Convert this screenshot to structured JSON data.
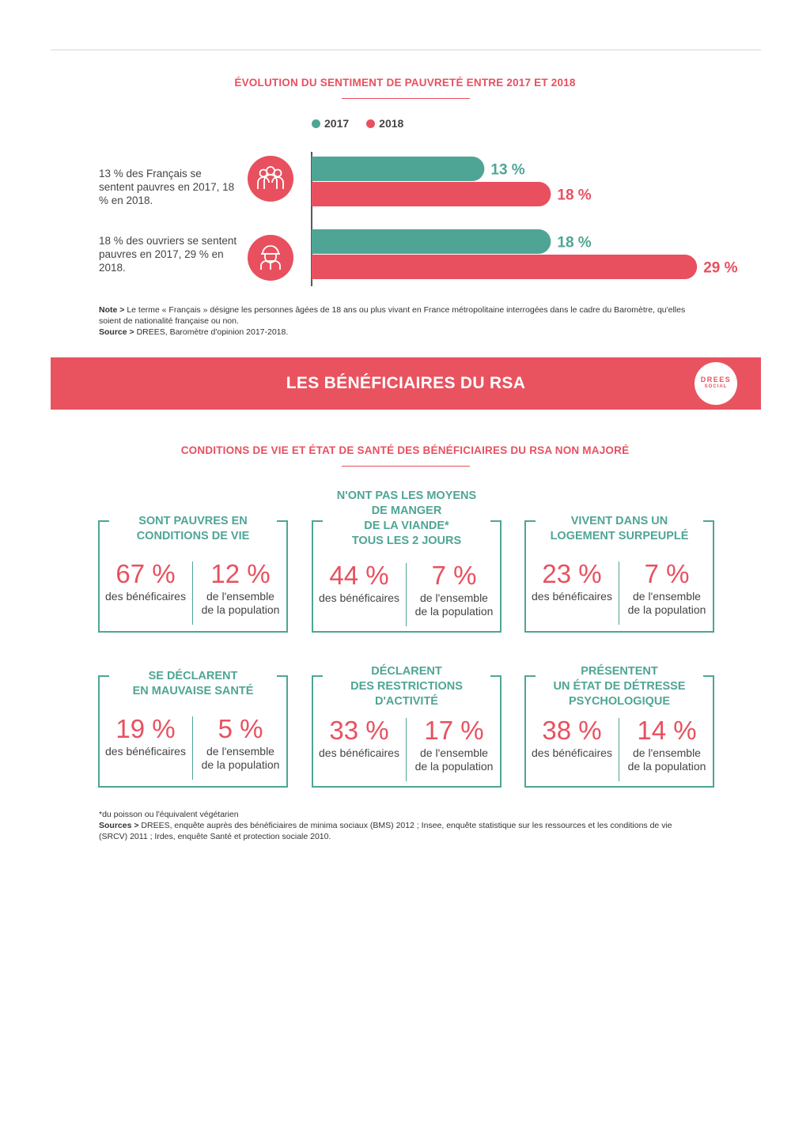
{
  "chart_data": {
    "type": "bar",
    "title": "ÉVOLUTION DU SENTIMENT DE PAUVRETÉ ENTRE 2017 ET 2018",
    "categories": [
      "13 % des Français se sentent pauvres en 2017, 18 % en 2018.",
      "18 % des ouvriers se sentent pauvres en 2017, 29 % en 2018."
    ],
    "series": [
      {
        "name": "2017",
        "values": [
          13,
          18
        ],
        "labels": [
          "13 %",
          "18 %"
        ],
        "color": "#4fa595"
      },
      {
        "name": "2018",
        "values": [
          18,
          29
        ],
        "labels": [
          "18 %",
          "29 %"
        ],
        "color": "#e8505f"
      }
    ],
    "orientation": "horizontal",
    "xlim": [
      0,
      31
    ],
    "grid": false,
    "legend_position": "top"
  },
  "chart_section": {
    "title": "ÉVOLUTION DU SENTIMENT DE PAUVRETÉ ENTRE 2017 ET 2018",
    "legend": [
      "2017",
      "2018"
    ],
    "row_icons": [
      "people-group-icon",
      "worker-helmet-icon"
    ],
    "note_label": "Note >",
    "note_text": "Le terme « Français » désigne les personnes âgées de 18 ans ou plus vivant en France métropolitaine interrogées dans le cadre du Baromètre, qu'elles soient de nationalité française ou non.",
    "source_label": "Source >",
    "source_text": "DREES, Baromètre d'opinion 2017-2018."
  },
  "banner": {
    "title": "LES BÉNÉFICIAIRES DU RSA",
    "logo_main": "DREES",
    "logo_sub": "SOCIAL",
    "color": "#e8535f"
  },
  "rsa_section": {
    "title": "CONDITIONS DE VIE ET ÉTAT DE SANTÉ DES BÉNÉFICIAIRES DU RSA NON MAJORÉ",
    "boxes": [
      {
        "heading": [
          "SONT PAUVRES EN",
          "CONDITIONS DE VIE"
        ],
        "left_value": "67 %",
        "left_label": [
          "des bénéficaires"
        ],
        "right_value": "12 %",
        "right_label": [
          "de l'ensemble",
          "de la population"
        ]
      },
      {
        "heading": [
          "N'ONT PAS LES MOYENS",
          "DE MANGER",
          "DE LA VIANDE*",
          "TOUS LES 2 JOURS"
        ],
        "left_value": "44 %",
        "left_label": [
          "des bénéficaires"
        ],
        "right_value": "7 %",
        "right_label": [
          "de l'ensemble",
          "de la population"
        ]
      },
      {
        "heading": [
          "VIVENT DANS UN",
          "LOGEMENT SURPEUPLÉ"
        ],
        "left_value": "23 %",
        "left_label": [
          "des bénéficaires"
        ],
        "right_value": "7 %",
        "right_label": [
          "de l'ensemble",
          "de la population"
        ]
      },
      {
        "heading": [
          "SE DÉCLARENT",
          "EN MAUVAISE SANTÉ"
        ],
        "left_value": "19 %",
        "left_label": [
          "des bénéficaires"
        ],
        "right_value": "5 %",
        "right_label": [
          "de l'ensemble",
          "de la population"
        ]
      },
      {
        "heading": [
          "DÉCLARENT",
          "DES RESTRICTIONS",
          "D'ACTIVITÉ"
        ],
        "left_value": "33 %",
        "left_label": [
          "des bénéficaires"
        ],
        "right_value": "17 %",
        "right_label": [
          "de l'ensemble",
          "de la population"
        ]
      },
      {
        "heading": [
          "PRÉSENTENT",
          "UN ÉTAT DE DÉTRESSE",
          "PSYCHOLOGIQUE"
        ],
        "left_value": "38 %",
        "left_label": [
          "des bénéficaires"
        ],
        "right_value": "14 %",
        "right_label": [
          "de l'ensemble",
          "de la population"
        ]
      }
    ],
    "footnote": "*du poisson ou l'équivalent végétarien",
    "sources_label": "Sources >",
    "sources_text": "DREES, enquête auprès des bénéficiaires de minima sociaux (BMS) 2012 ; Insee, enquête statistique sur les ressources et les conditions de vie (SRCV) 2011 ; Irdes, enquête Santé et protection sociale 2010."
  }
}
